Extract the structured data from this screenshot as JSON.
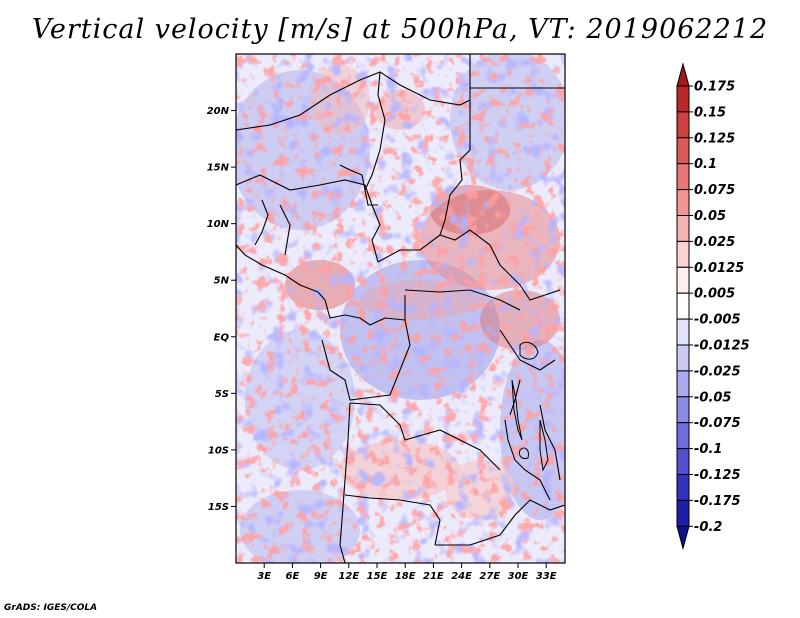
{
  "title": "Vertical velocity [m/s] at 500hPa, VT: 2019062212",
  "credit": "GrADS: IGES/COLA",
  "map": {
    "lon_range": [
      0,
      35
    ],
    "lat_range": [
      -20,
      25
    ],
    "lon_ticks": [
      "3E",
      "6E",
      "9E",
      "12E",
      "15E",
      "18E",
      "21E",
      "24E",
      "27E",
      "30E",
      "33E"
    ],
    "lat_ticks": [
      "20N",
      "15N",
      "10N",
      "5N",
      "EQ",
      "5S",
      "10S",
      "15S"
    ]
  },
  "colorbar": {
    "labels": [
      "0.175",
      "0.15",
      "0.125",
      "0.1",
      "0.075",
      "0.05",
      "0.025",
      "0.0125",
      "0.005",
      "-0.005",
      "-0.0125",
      "-0.025",
      "-0.05",
      "-0.075",
      "-0.1",
      "-0.125",
      "-0.175",
      "-0.2"
    ],
    "colors": [
      "#a01818",
      "#b82a2a",
      "#cc4040",
      "#dc5a5a",
      "#e87676",
      "#f29494",
      "#f8b4b4",
      "#fbd2d2",
      "#feeeee",
      "#ffffff",
      "#e4e4fb",
      "#cacaf5",
      "#aaaaf0",
      "#8c8ce6",
      "#6e6edc",
      "#4f4fd0",
      "#3232bb",
      "#1e1ea8",
      "#10108a"
    ]
  }
}
